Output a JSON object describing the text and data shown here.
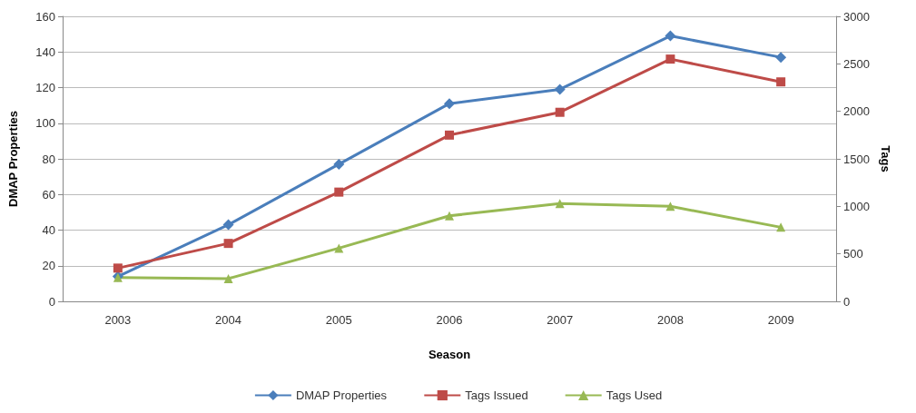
{
  "chart_data": {
    "type": "line",
    "xlabel": "Season",
    "ylabel": "DMAP Properties",
    "y2label": "Tags",
    "categories": [
      "2003",
      "2004",
      "2005",
      "2006",
      "2007",
      "2008",
      "2009"
    ],
    "series": [
      {
        "name": "DMAP Properties",
        "color": "#4a7ebb",
        "marker": "diamond",
        "values": [
          14,
          43,
          77,
          111,
          119,
          149,
          137
        ]
      },
      {
        "name": "Tags Issued",
        "color": "#be4b48",
        "marker": "square",
        "axis": "y2",
        "values": [
          350,
          610,
          1150,
          1750,
          1990,
          2550,
          2310
        ]
      },
      {
        "name": "Tags Used",
        "color": "#98b954",
        "marker": "triangle",
        "axis": "y2",
        "values": [
          250,
          240,
          560,
          900,
          1030,
          1000,
          780
        ]
      }
    ],
    "ylim": [
      0,
      160
    ],
    "yticks": [
      0,
      20,
      40,
      60,
      80,
      100,
      120,
      140,
      160
    ],
    "y2lim": [
      0,
      3000
    ],
    "y2ticks": [
      0,
      500,
      1000,
      1500,
      2000,
      2500,
      3000
    ],
    "grid": "y",
    "legend": "bottom"
  }
}
